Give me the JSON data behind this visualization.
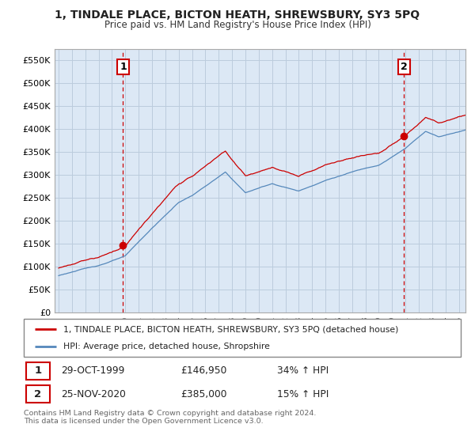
{
  "title": "1, TINDALE PLACE, BICTON HEATH, SHREWSBURY, SY3 5PQ",
  "subtitle": "Price paid vs. HM Land Registry's House Price Index (HPI)",
  "ylim": [
    0,
    575000
  ],
  "yticks": [
    0,
    50000,
    100000,
    150000,
    200000,
    250000,
    300000,
    350000,
    400000,
    450000,
    500000,
    550000
  ],
  "ytick_labels": [
    "£0",
    "£50K",
    "£100K",
    "£150K",
    "£200K",
    "£250K",
    "£300K",
    "£350K",
    "£400K",
    "£450K",
    "£500K",
    "£550K"
  ],
  "red_line_color": "#cc0000",
  "blue_line_color": "#5588bb",
  "blue_fill_color": "#dce8f5",
  "vline_color": "#cc0000",
  "background_color": "#ffffff",
  "chart_bg_color": "#dce8f5",
  "grid_color": "#bbccdd",
  "legend_label_red": "1, TINDALE PLACE, BICTON HEATH, SHREWSBURY, SY3 5PQ (detached house)",
  "legend_label_blue": "HPI: Average price, detached house, Shropshire",
  "sale1_date": "29-OCT-1999",
  "sale1_price": "£146,950",
  "sale1_hpi": "34% ↑ HPI",
  "sale2_date": "25-NOV-2020",
  "sale2_price": "£385,000",
  "sale2_hpi": "15% ↑ HPI",
  "footnote": "Contains HM Land Registry data © Crown copyright and database right 2024.\nThis data is licensed under the Open Government Licence v3.0.",
  "sale1_year": 1999.83,
  "sale2_year": 2020.9,
  "sale1_price_val": 146950,
  "sale2_price_val": 385000
}
